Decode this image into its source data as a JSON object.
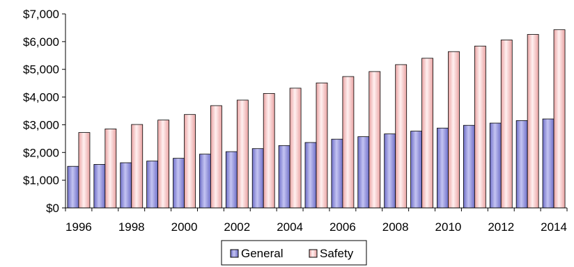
{
  "chart_data": {
    "type": "bar",
    "categories": [
      "1996",
      "1997",
      "1998",
      "1999",
      "2000",
      "2001",
      "2002",
      "2003",
      "2004",
      "2005",
      "2006",
      "2007",
      "2008",
      "2009",
      "2010",
      "2011",
      "2012",
      "2013",
      "2014"
    ],
    "x_tick_labels": [
      "1996",
      "1998",
      "2000",
      "2002",
      "2004",
      "2006",
      "2008",
      "2010",
      "2012",
      "2014"
    ],
    "y_tick_labels": [
      "$0",
      "$1,000",
      "$2,000",
      "$3,000",
      "$4,000",
      "$5,000",
      "$6,000",
      "$7,000"
    ],
    "ylim": [
      0,
      7000
    ],
    "ytick_step": 1000,
    "grid": false,
    "legend_position": "bottom",
    "series": [
      {
        "name": "General",
        "color": "#9a9ae6",
        "values": [
          1500,
          1570,
          1630,
          1690,
          1790,
          1940,
          2030,
          2140,
          2250,
          2360,
          2480,
          2570,
          2670,
          2770,
          2880,
          2980,
          3060,
          3150,
          3210
        ]
      },
      {
        "name": "Safety",
        "color": "#f5c4c4",
        "values": [
          2720,
          2850,
          3010,
          3170,
          3370,
          3690,
          3890,
          4130,
          4320,
          4510,
          4740,
          4920,
          5170,
          5400,
          5640,
          5840,
          6060,
          6260,
          6430
        ]
      }
    ]
  }
}
